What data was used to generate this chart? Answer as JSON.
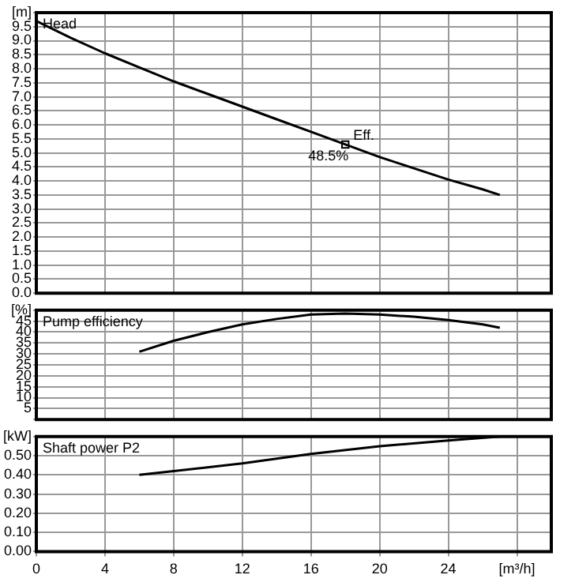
{
  "chart_data": [
    {
      "type": "line",
      "title": "Head",
      "x": [
        0,
        2,
        4,
        6,
        8,
        10,
        12,
        14,
        16,
        18,
        20,
        22,
        24,
        26,
        27
      ],
      "marker": "none",
      "grid": true,
      "tick_labels": "y",
      "series": [
        {
          "color": "#000000",
          "values": [
            9.7,
            9.1,
            8.55,
            8.05,
            7.55,
            7.1,
            6.65,
            6.2,
            5.75,
            5.3,
            4.85,
            4.45,
            4.05,
            3.7,
            3.5
          ]
        },
        {
          "type": "scatter",
          "marker": "square",
          "color": "#000000",
          "x": [
            18
          ],
          "values": [
            5.3
          ]
        }
      ],
      "annotations": [
        {
          "text": "Eff.",
          "x": 18,
          "y": 5.3
        },
        {
          "text": "48.5%",
          "x": 18,
          "y": 5.3
        }
      ],
      "xlim": [
        0,
        30
      ],
      "xticks": [
        0,
        4,
        8,
        12,
        16,
        20,
        24,
        28
      ],
      "ylim": [
        0,
        10
      ],
      "yticks": [
        {
          "value": 0,
          "label": "0.0"
        },
        0.5,
        {
          "value": 1,
          "label": "1.0"
        },
        1.5,
        {
          "value": 2,
          "label": "2.0"
        },
        2.5,
        {
          "value": 3,
          "label": "3.0"
        },
        3.5,
        {
          "value": 4,
          "label": "4.0"
        },
        4.5,
        {
          "value": 5,
          "label": "5.0"
        },
        5.5,
        {
          "value": 6,
          "label": "6.0"
        },
        6.5,
        {
          "value": 7,
          "label": "7.0"
        },
        7.5,
        {
          "value": 8,
          "label": "8.0"
        },
        8.5,
        {
          "value": 9,
          "label": "9.0"
        },
        9.5,
        {
          "value": 10,
          "label": "[m]"
        }
      ]
    },
    {
      "type": "line",
      "title": "Pump efficiency",
      "x": [
        6,
        8,
        10,
        12,
        14,
        16,
        18,
        20,
        22,
        24,
        26,
        27
      ],
      "marker": "none",
      "grid": true,
      "tick_labels": "y",
      "series": [
        {
          "color": "#000000",
          "values": [
            31,
            36,
            40,
            43.5,
            46,
            48,
            48.5,
            48,
            47,
            45.5,
            43.5,
            42
          ]
        }
      ],
      "xlim": [
        0,
        30
      ],
      "xticks": [
        0,
        4,
        8,
        12,
        16,
        20,
        24,
        28
      ],
      "ylim": [
        0,
        50
      ],
      "yticks": [
        {
          "value": 0,
          "label": null
        },
        5,
        10,
        15,
        20,
        25,
        30,
        35,
        40,
        45,
        {
          "value": 50,
          "label": "[%]"
        }
      ]
    },
    {
      "type": "line",
      "title": "Shaft power P2",
      "x": [
        6,
        8,
        12,
        16,
        20,
        24,
        27
      ],
      "marker": "none",
      "grid": true,
      "series": [
        {
          "color": "#000000",
          "values": [
            0.4,
            0.42,
            0.46,
            0.51,
            0.55,
            0.58,
            0.6
          ]
        }
      ],
      "xlim": [
        0,
        30
      ],
      "xticks": [
        0,
        4,
        8,
        12,
        16,
        20,
        24,
        {
          "value": 28,
          "label": "[m³/h]"
        }
      ],
      "ylim": [
        0,
        0.6
      ],
      "yticks": [
        {
          "value": 0,
          "label": "0.00"
        },
        {
          "value": 0.1,
          "label": "0.10"
        },
        {
          "value": 0.2,
          "label": "0.20"
        },
        {
          "value": 0.3,
          "label": "0.30"
        },
        {
          "value": 0.4,
          "label": "0.40"
        },
        {
          "value": 0.5,
          "label": "0.50"
        },
        {
          "value": 0.6,
          "label": "[kW]"
        }
      ]
    }
  ]
}
